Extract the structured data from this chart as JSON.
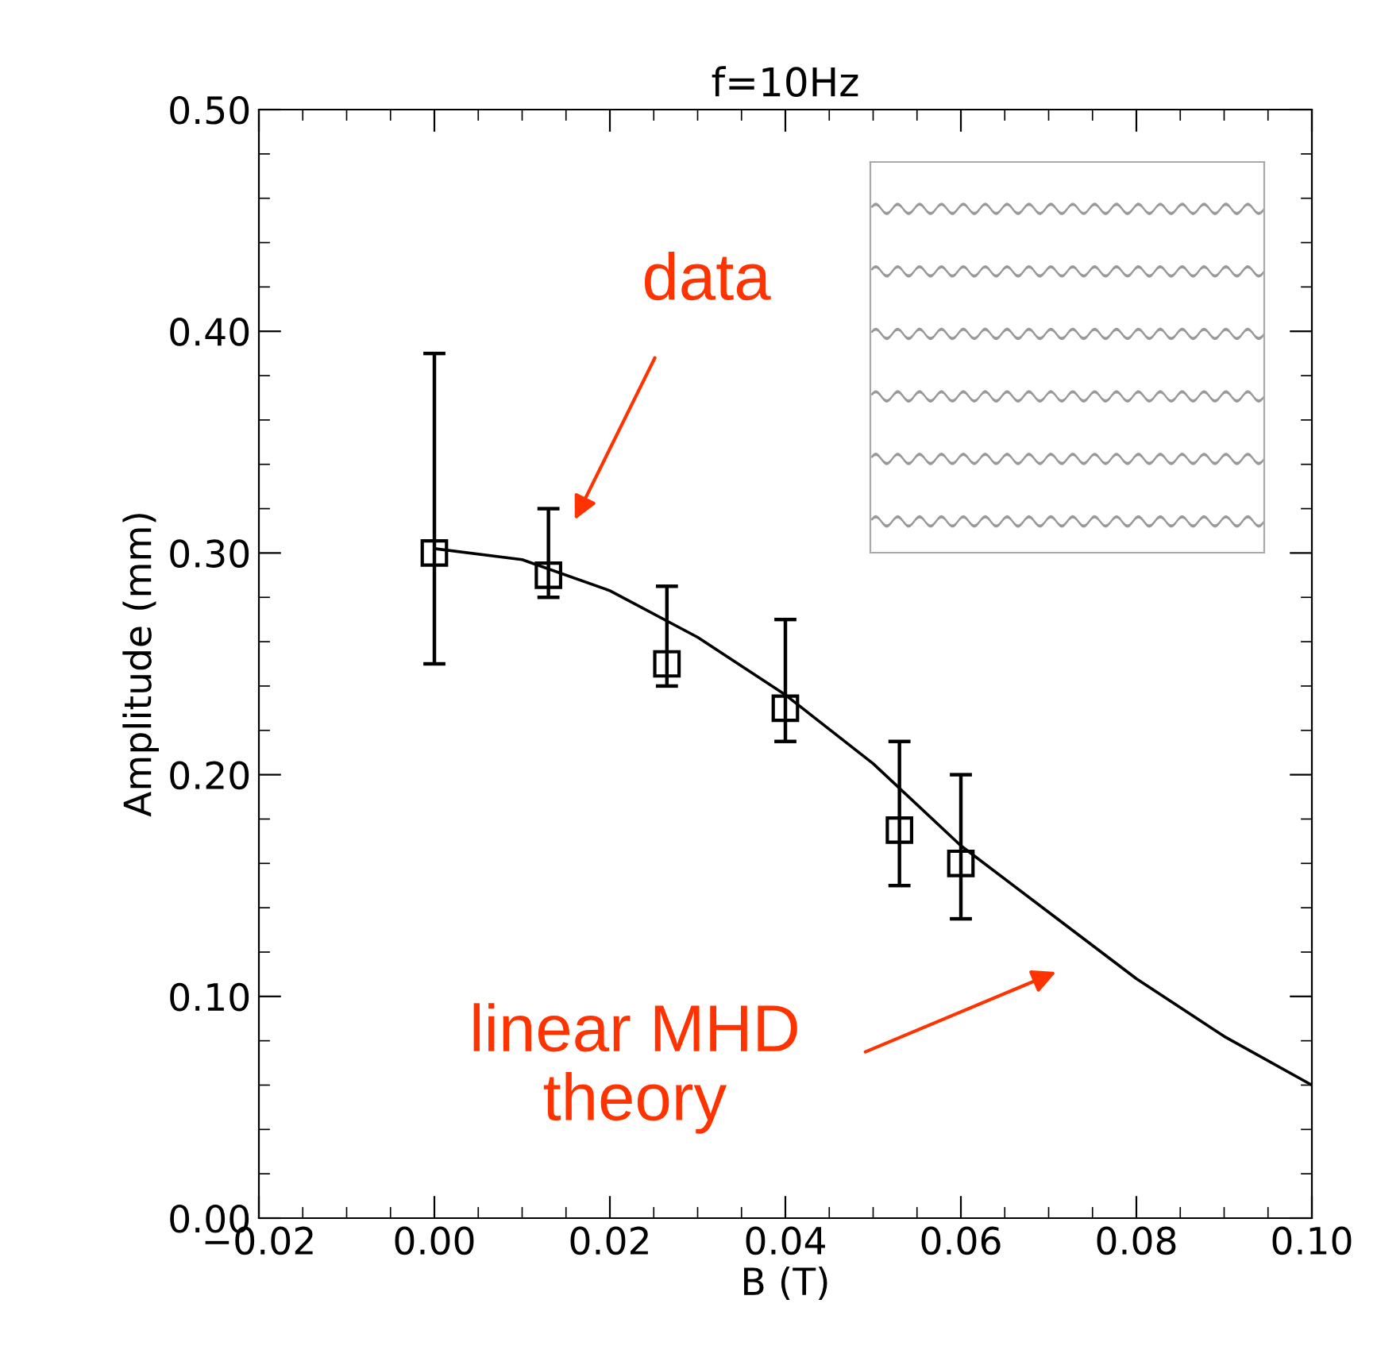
{
  "chart_data": {
    "type": "scatter",
    "title": "f=10Hz",
    "xlabel": "B (T)",
    "ylabel": "Amplitude (mm)",
    "xlim": [
      -0.02,
      0.1
    ],
    "ylim": [
      0,
      0.5
    ],
    "xticks": [
      {
        "value": -0.02,
        "label": "−0.02"
      },
      {
        "value": 0,
        "label": "0.00"
      },
      {
        "value": 0.02,
        "label": "0.02"
      },
      {
        "value": 0.04,
        "label": "0.04"
      },
      {
        "value": 0.06,
        "label": "0.06"
      },
      {
        "value": 0.08,
        "label": "0.08"
      },
      {
        "value": 0.1,
        "label": "0.10"
      }
    ],
    "yticks": [
      {
        "value": 0,
        "label": "0.00"
      },
      {
        "value": 0.1,
        "label": "0.10"
      },
      {
        "value": 0.2,
        "label": "0.20"
      },
      {
        "value": 0.3,
        "label": "0.30"
      },
      {
        "value": 0.4,
        "label": "0.40"
      },
      {
        "value": 0.5,
        "label": "0.50"
      }
    ],
    "grid": false,
    "legend": false,
    "series": [
      {
        "color": "#000000",
        "marker": "square",
        "x": [
          0.0,
          0.013,
          0.0265,
          0.04,
          0.053,
          0.06
        ],
        "values": [
          0.3,
          0.29,
          0.25,
          0.23,
          0.175,
          0.16
        ],
        "errors": [
          [
            0.25,
            0.39
          ],
          [
            0.28,
            0.32
          ],
          [
            0.24,
            0.285
          ],
          [
            0.215,
            0.27
          ],
          [
            0.15,
            0.215
          ],
          [
            0.135,
            0.2
          ]
        ]
      },
      {
        "type": "line",
        "color": "#000000",
        "marker": "none",
        "line_style": "solid",
        "x": [
          0,
          0.01,
          0.02,
          0.03,
          0.04,
          0.05,
          0.06,
          0.07,
          0.08,
          0.09,
          0.1
        ],
        "values": [
          0.302,
          0.297,
          0.283,
          0.262,
          0.236,
          0.205,
          0.168,
          0.138,
          0.108,
          0.082,
          0.06
        ]
      }
    ],
    "annotations": [
      "data",
      "linear MHD\ntheory"
    ]
  }
}
